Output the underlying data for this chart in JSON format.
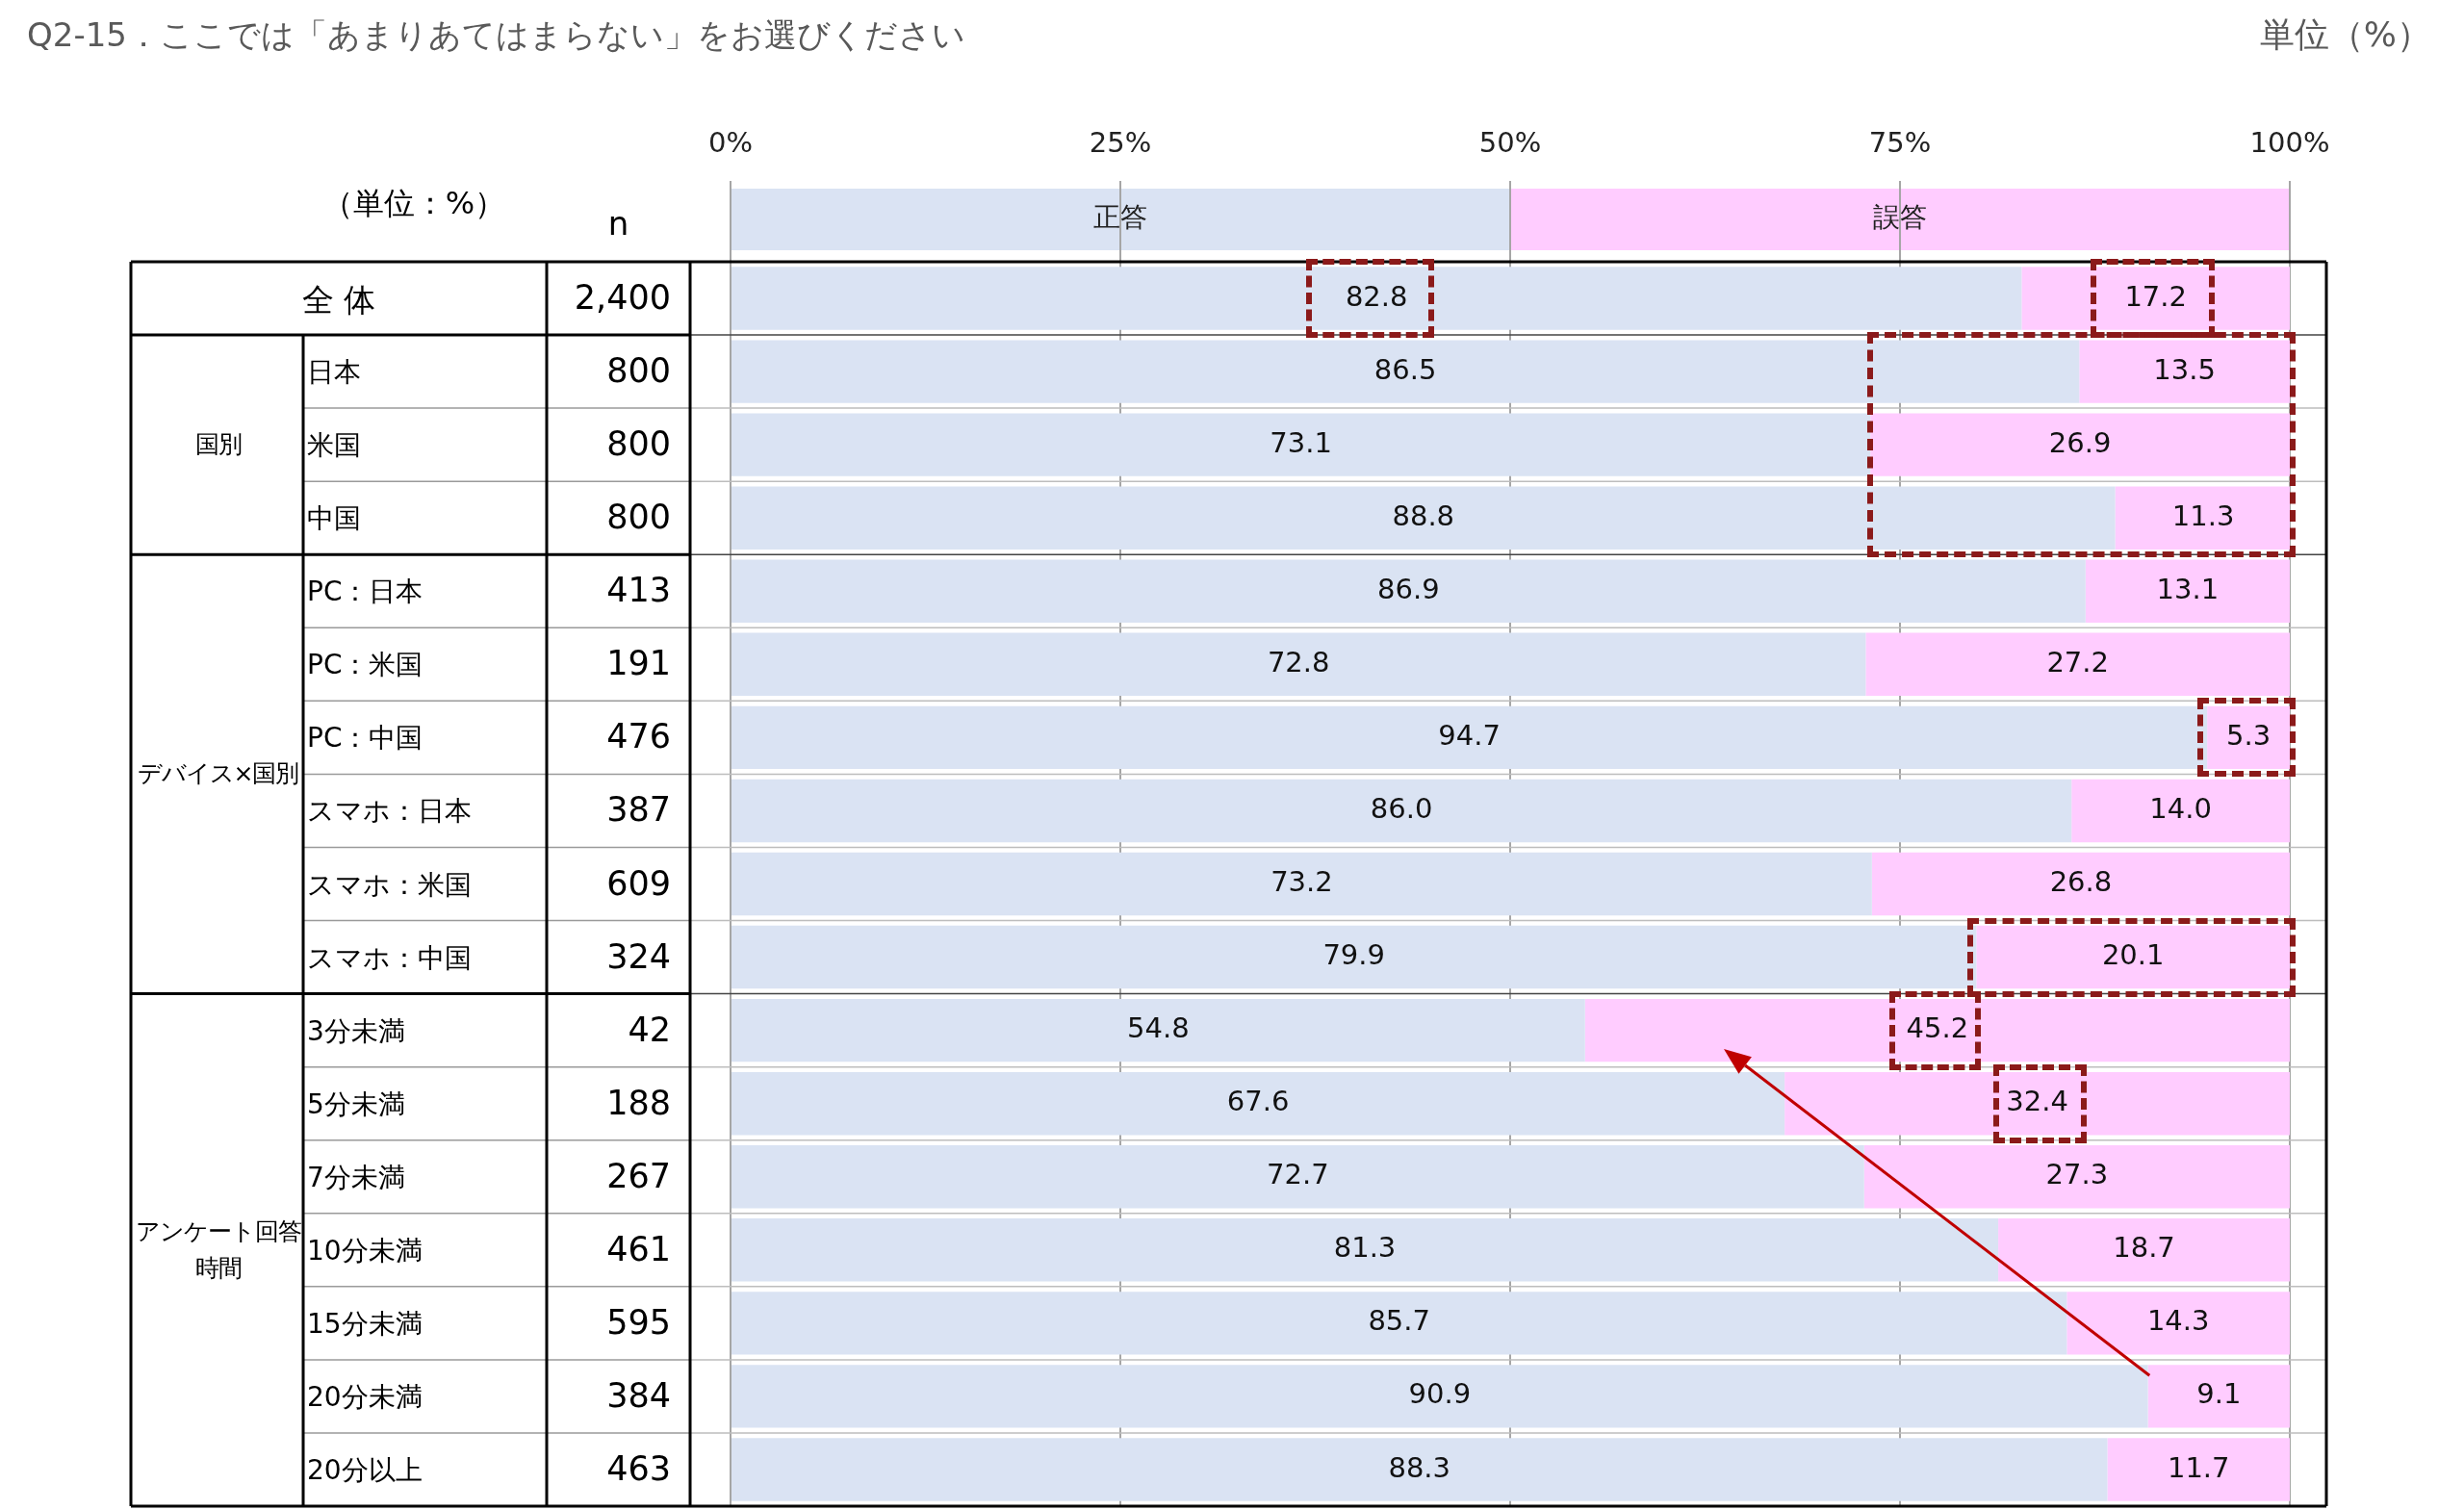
{
  "chart_data": {
    "type": "bar",
    "orientation": "horizontal",
    "stacked": true,
    "title": "Q2-15．ここでは「あまりあてはまらない」をお選びください",
    "subtitle": "単位（%）",
    "categories": [
      "全 体",
      "日本",
      "米国",
      "中国",
      "PC：日本",
      "PC：米国",
      "PC：中国",
      "スマホ：日本",
      "スマホ：米国",
      "スマホ：中国",
      "3分未満",
      "5分未満",
      "7分未満",
      "10分未満",
      "15分未満",
      "20分未満",
      "20分以上"
    ],
    "series": [
      {
        "name": "正答",
        "color": "#dae3f3",
        "values": [
          82.8,
          86.5,
          73.1,
          88.8,
          86.9,
          72.8,
          94.7,
          86.0,
          73.2,
          79.9,
          54.8,
          67.6,
          72.7,
          81.3,
          85.7,
          90.9,
          88.3
        ],
        "value_labels": [
          "82.8",
          "86.5",
          "73.1",
          "88.8",
          "86.9",
          "72.8",
          "94.7",
          "86.0",
          "73.2",
          "79.9",
          "54.8",
          "67.6",
          "72.7",
          "81.3",
          "85.7",
          "90.9",
          "88.3"
        ]
      },
      {
        "name": "誤答",
        "color": "#ffccff",
        "values": [
          17.2,
          13.5,
          26.9,
          11.3,
          13.1,
          27.2,
          5.3,
          14.0,
          26.8,
          20.1,
          45.2,
          32.4,
          27.3,
          18.7,
          14.3,
          9.1,
          11.7
        ],
        "value_labels": [
          "17.2",
          "13.5",
          "26.9",
          "11.3",
          "13.1",
          "27.2",
          "5.3",
          "14.0",
          "26.8",
          "20.1",
          "45.2",
          "32.4",
          "27.3",
          "18.7",
          "14.3",
          "9.1",
          "11.7"
        ]
      }
    ],
    "xlim": [
      0,
      100
    ],
    "xticks": [
      {
        "value": 0,
        "label": "0%"
      },
      {
        "value": 25,
        "label": "25%"
      },
      {
        "value": 50,
        "label": "50%"
      },
      {
        "value": 75,
        "label": "75%"
      },
      {
        "value": 100,
        "label": "100%"
      }
    ],
    "grid": "x",
    "legend": "top",
    "annotations": [
      "（単位：%）",
      "n",
      "国別",
      "デバイス×国別",
      "アンケート回答時間",
      "2,400",
      "800",
      "800",
      "800",
      "413",
      "191",
      "476",
      "387",
      "609",
      "324",
      "42",
      "188",
      "267",
      "461",
      "595",
      "384",
      "463"
    ]
  }
}
